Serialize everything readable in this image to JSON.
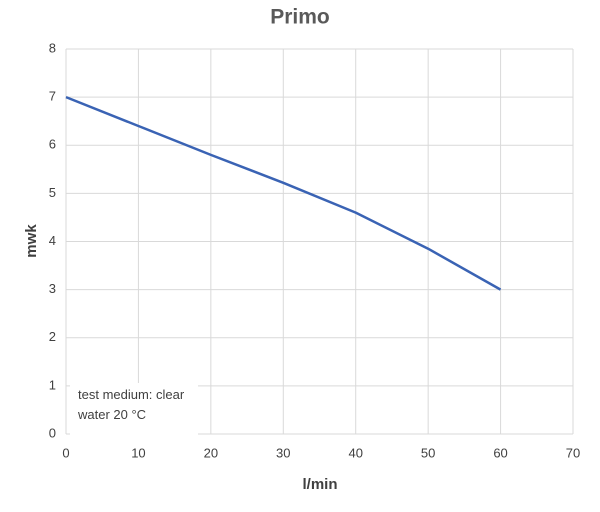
{
  "chart_data": {
    "type": "line",
    "title": "Primo",
    "xlabel": "l/min",
    "ylabel": "mwk",
    "annotation": "test medium: clear water 20 °C",
    "x": [
      0,
      10,
      20,
      30,
      40,
      50,
      60
    ],
    "series": [
      {
        "name": "Primo",
        "color": "#3a63b4",
        "values": [
          7,
          6.4,
          5.8,
          5.22,
          4.6,
          3.85,
          3
        ]
      }
    ],
    "xlim": [
      0,
      70
    ],
    "xticks": [
      0,
      10,
      20,
      30,
      40,
      50,
      60,
      70
    ],
    "ylim": [
      0,
      8
    ],
    "yticks": [
      0,
      1,
      2,
      3,
      4,
      5,
      6,
      7,
      8
    ],
    "grid": true
  }
}
